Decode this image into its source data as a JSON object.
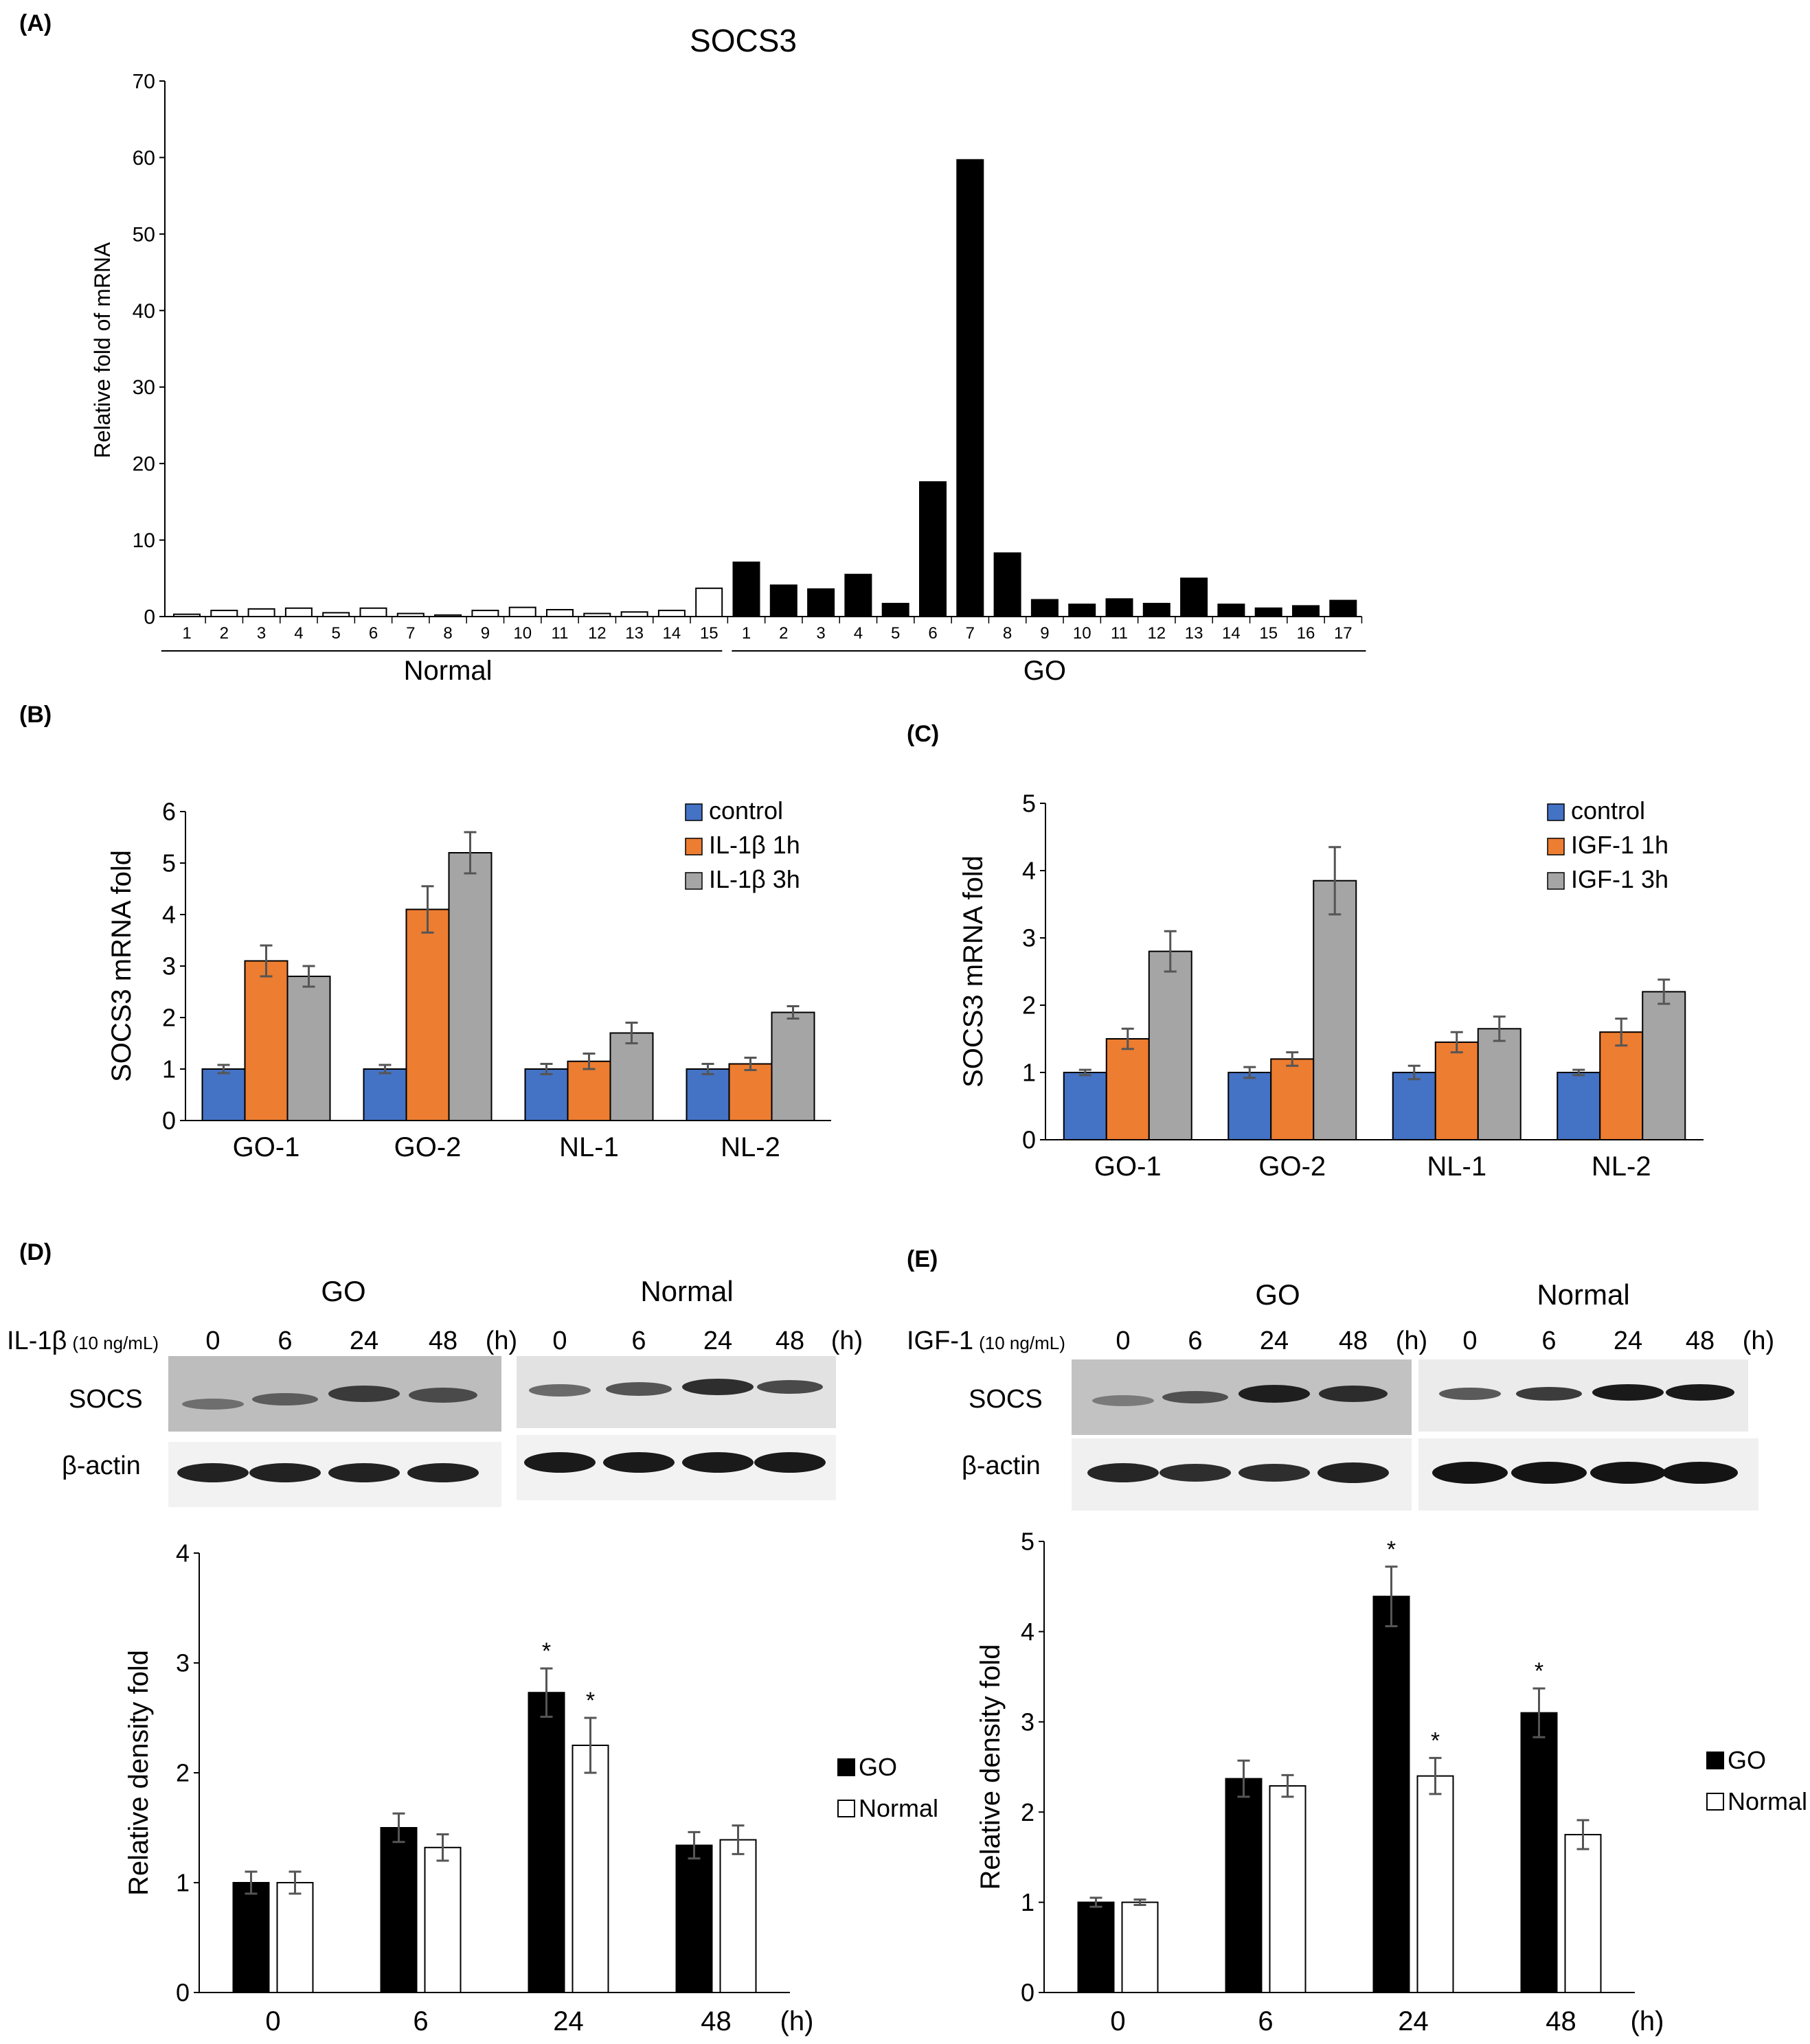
{
  "panels": {
    "A": {
      "label": "(A)"
    },
    "B": {
      "label": "(B)"
    },
    "C": {
      "label": "(C)"
    },
    "D": {
      "label": "(D)"
    },
    "E": {
      "label": "(E)"
    }
  },
  "blots": {
    "D": {
      "treatment_name": "IL-1β",
      "treatment_dose": "(10 ng/mL)",
      "group_go": "GO",
      "group_normal": "Normal",
      "times": [
        "0",
        "6",
        "24",
        "48"
      ],
      "unit": "(h)",
      "row1": "SOCS",
      "row2": "β-actin"
    },
    "E": {
      "treatment_name": "IGF-1",
      "treatment_dose": "(10 ng/mL)",
      "group_go": "GO",
      "group_normal": "Normal",
      "times": [
        "0",
        "6",
        "24",
        "48"
      ],
      "unit": "(h)",
      "row1": "SOCS",
      "row2": "β-actin"
    }
  },
  "colors": {
    "blue": "#4472C4",
    "orange": "#ED7D31",
    "gray": "#A5A5A5",
    "black": "#000000",
    "white": "#FFFFFF"
  },
  "chart_data": [
    {
      "id": "A",
      "type": "bar",
      "title": "SOCS3",
      "ylabel": "Relative fold of mRNA",
      "ylim": [
        0,
        70
      ],
      "yticks": [
        0,
        10,
        20,
        30,
        40,
        50,
        60,
        70
      ],
      "groups": [
        {
          "name": "Normal",
          "categories": [
            "1",
            "2",
            "3",
            "4",
            "5",
            "6",
            "7",
            "8",
            "9",
            "10",
            "11",
            "12",
            "13",
            "14",
            "15"
          ],
          "values": [
            0.3,
            0.8,
            1.0,
            1.1,
            0.5,
            1.1,
            0.4,
            0.2,
            0.8,
            1.2,
            0.9,
            0.4,
            0.6,
            0.8,
            3.7
          ]
        },
        {
          "name": "GO",
          "categories": [
            "1",
            "2",
            "3",
            "4",
            "5",
            "6",
            "7",
            "8",
            "9",
            "10",
            "11",
            "12",
            "13",
            "14",
            "15",
            "16",
            "17"
          ],
          "values": [
            7.1,
            4.1,
            3.6,
            5.5,
            1.7,
            17.6,
            59.7,
            8.3,
            2.2,
            1.6,
            2.3,
            1.7,
            5.0,
            1.6,
            1.1,
            1.4,
            2.1
          ]
        }
      ]
    },
    {
      "id": "B",
      "type": "bar",
      "ylabel": "SOCS3 mRNA fold",
      "ylim": [
        0,
        6
      ],
      "yticks": [
        0,
        1,
        2,
        3,
        4,
        5,
        6
      ],
      "categories": [
        "GO-1",
        "GO-2",
        "NL-1",
        "NL-2"
      ],
      "series": [
        {
          "name": "control",
          "values": [
            1.0,
            1.0,
            1.0,
            1.0
          ],
          "errors": [
            0.08,
            0.08,
            0.1,
            0.1
          ]
        },
        {
          "name": "IL-1β 1h",
          "values": [
            3.1,
            4.1,
            1.15,
            1.1
          ],
          "errors": [
            0.3,
            0.45,
            0.15,
            0.12
          ]
        },
        {
          "name": "IL-1β 3h",
          "values": [
            2.8,
            5.2,
            1.7,
            2.1
          ],
          "errors": [
            0.2,
            0.4,
            0.2,
            0.12
          ]
        }
      ],
      "legend": "top-right"
    },
    {
      "id": "C",
      "type": "bar",
      "ylabel": "SOCS3 mRNA fold",
      "ylim": [
        0,
        5
      ],
      "yticks": [
        0,
        1,
        2,
        3,
        4,
        5
      ],
      "categories": [
        "GO-1",
        "GO-2",
        "NL-1",
        "NL-2"
      ],
      "series": [
        {
          "name": "control",
          "values": [
            1.0,
            1.0,
            1.0,
            1.0
          ],
          "errors": [
            0.04,
            0.08,
            0.1,
            0.04
          ]
        },
        {
          "name": "IGF-1 1h",
          "values": [
            1.5,
            1.2,
            1.45,
            1.6
          ],
          "errors": [
            0.15,
            0.1,
            0.15,
            0.2
          ]
        },
        {
          "name": "IGF-1 3h",
          "values": [
            2.8,
            3.85,
            1.65,
            2.2
          ],
          "errors": [
            0.3,
            0.5,
            0.18,
            0.18
          ]
        }
      ],
      "legend": "top-right"
    },
    {
      "id": "D",
      "type": "bar",
      "ylabel": "Relative density fold",
      "ylim": [
        0,
        4
      ],
      "yticks": [
        0,
        1,
        2,
        3,
        4
      ],
      "categories": [
        "0",
        "6",
        "24",
        "48"
      ],
      "x_unit": "(h)",
      "series": [
        {
          "name": "GO",
          "values": [
            1.0,
            1.5,
            2.73,
            1.34
          ],
          "errors": [
            0.1,
            0.13,
            0.22,
            0.12
          ],
          "significant": [
            "",
            "",
            "*",
            ""
          ]
        },
        {
          "name": "Normal",
          "values": [
            1.0,
            1.32,
            2.25,
            1.39
          ],
          "errors": [
            0.1,
            0.12,
            0.25,
            0.13
          ],
          "significant": [
            "",
            "",
            "*",
            ""
          ]
        }
      ],
      "legend": "right"
    },
    {
      "id": "E",
      "type": "bar",
      "ylabel": "Relative density fold",
      "ylim": [
        0,
        5
      ],
      "yticks": [
        0,
        1,
        2,
        3,
        4,
        5
      ],
      "categories": [
        "0",
        "6",
        "24",
        "48"
      ],
      "x_unit": "(h)",
      "series": [
        {
          "name": "GO",
          "values": [
            1.0,
            2.37,
            4.39,
            3.1
          ],
          "errors": [
            0.05,
            0.2,
            0.33,
            0.27
          ],
          "significant": [
            "",
            "",
            "*",
            "*"
          ]
        },
        {
          "name": "Normal",
          "values": [
            1.0,
            2.29,
            2.4,
            1.75
          ],
          "errors": [
            0.03,
            0.12,
            0.2,
            0.16
          ],
          "significant": [
            "",
            "",
            "*",
            ""
          ]
        }
      ],
      "legend": "right"
    }
  ]
}
